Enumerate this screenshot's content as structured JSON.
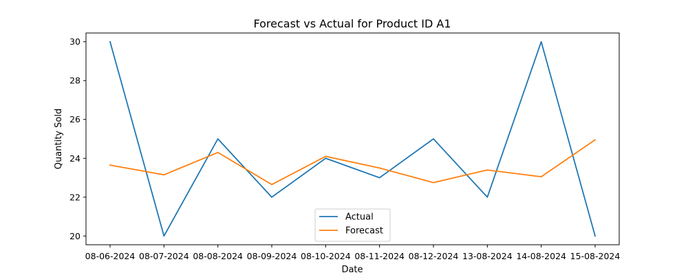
{
  "chart_data": {
    "type": "line",
    "title": "Forecast vs Actual for Product ID A1",
    "xlabel": "Date",
    "ylabel": "Quantity Sold",
    "categories": [
      "08-06-2024",
      "08-07-2024",
      "08-08-2024",
      "08-09-2024",
      "08-10-2024",
      "08-11-2024",
      "08-12-2024",
      "13-08-2024",
      "14-08-2024",
      "15-08-2024"
    ],
    "series": [
      {
        "name": "Actual",
        "color": "#1f77b4",
        "values": [
          30,
          20,
          25,
          22,
          24,
          23,
          25,
          22,
          30,
          20
        ]
      },
      {
        "name": "Forecast",
        "color": "#ff7f0e",
        "values": [
          23.65,
          23.15,
          24.3,
          22.65,
          24.1,
          23.5,
          22.75,
          23.4,
          23.05,
          24.95
        ]
      }
    ],
    "ylim": [
      19.55,
      30.45
    ],
    "yticks": [
      20,
      22,
      24,
      26,
      28,
      30
    ],
    "grid": false,
    "legend_position": "bottom-center"
  }
}
